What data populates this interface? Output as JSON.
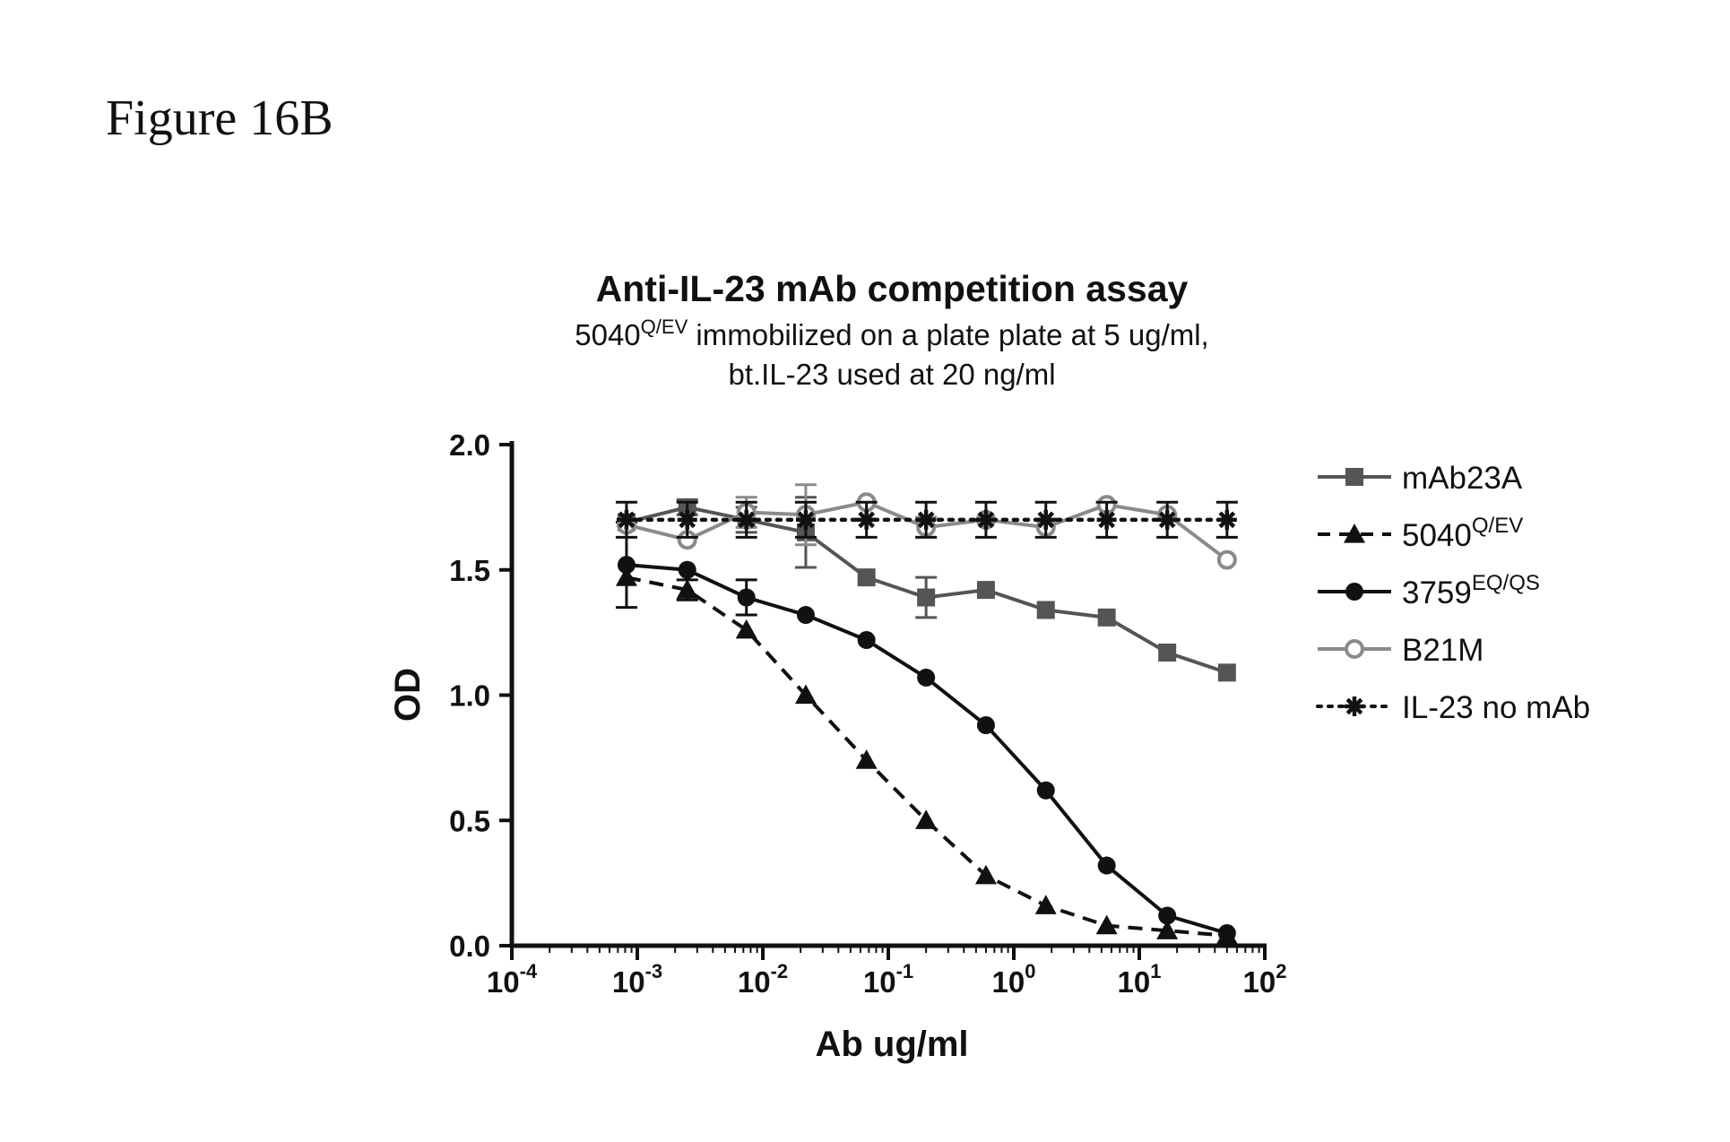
{
  "figure_label": "Figure 16B",
  "chart_data": {
    "type": "line",
    "title": "Anti-IL-23 mAb competition assay",
    "subtitle_lines": [
      {
        "pre": "5040",
        "sup": "Q/EV",
        "post": " immobilized on a plate plate at 5 ug/ml,"
      },
      {
        "pre": "bt.IL-23 used at 20 ng/ml",
        "sup": "",
        "post": ""
      }
    ],
    "xlabel": "Ab ug/ml",
    "ylabel": "OD",
    "x_scale": "log",
    "xlim": [
      0.0001,
      100
    ],
    "ylim": [
      0,
      2.0
    ],
    "x_ticks": [
      {
        "base": "10",
        "exp": "-4"
      },
      {
        "base": "10",
        "exp": "-3"
      },
      {
        "base": "10",
        "exp": "-2"
      },
      {
        "base": "10",
        "exp": "-1"
      },
      {
        "base": "10",
        "exp": "0"
      },
      {
        "base": "10",
        "exp": "1"
      },
      {
        "base": "10",
        "exp": "2"
      }
    ],
    "y_ticks": [
      "0.0",
      "0.5",
      "1.0",
      "1.5",
      "2.0"
    ],
    "grid": false,
    "legend_position": "right",
    "x": [
      0.00082,
      0.0025,
      0.0074,
      0.022,
      0.067,
      0.2,
      0.6,
      1.8,
      5.5,
      16.7,
      50
    ],
    "series": [
      {
        "name": "mAb23A",
        "sup": "",
        "marker": "square",
        "line": "solid",
        "color": "#555555",
        "values": [
          1.69,
          1.75,
          1.7,
          1.65,
          1.47,
          1.39,
          1.42,
          1.34,
          1.31,
          1.17,
          1.09
        ],
        "errors": [
          0,
          0.03,
          0.05,
          0.14,
          0,
          0.08,
          0,
          0,
          0,
          0,
          0
        ]
      },
      {
        "name": "5040",
        "sup": "Q/EV",
        "marker": "triangle",
        "line": "dashed",
        "color": "#111111",
        "values": [
          1.47,
          1.42,
          1.26,
          1.0,
          0.74,
          0.5,
          0.28,
          0.16,
          0.08,
          0.06,
          0.04
        ],
        "errors": [
          0,
          0.04,
          0,
          0,
          0,
          0,
          0,
          0,
          0,
          0,
          0
        ]
      },
      {
        "name": "3759",
        "sup": "EQ/QS",
        "marker": "circle",
        "line": "solid",
        "color": "#111111",
        "values": [
          1.52,
          1.5,
          1.39,
          1.32,
          1.22,
          1.07,
          0.88,
          0.62,
          0.32,
          0.12,
          0.05
        ],
        "errors": [
          0.17,
          0,
          0.07,
          0,
          0,
          0,
          0,
          0,
          0,
          0,
          0
        ]
      },
      {
        "name": "B21M",
        "sup": "",
        "marker": "open-circle",
        "line": "solid",
        "color": "#8a8a8a",
        "values": [
          1.68,
          1.62,
          1.73,
          1.72,
          1.77,
          1.67,
          1.7,
          1.67,
          1.76,
          1.72,
          1.54
        ],
        "errors": [
          0,
          0,
          0.06,
          0.12,
          0,
          0.04,
          0,
          0,
          0,
          0,
          0
        ]
      },
      {
        "name": "IL-23 no mAb",
        "sup": "",
        "marker": "star",
        "line": "dotted",
        "color": "#111111",
        "values": [
          1.7,
          1.7,
          1.7,
          1.7,
          1.7,
          1.7,
          1.7,
          1.7,
          1.7,
          1.7,
          1.7
        ],
        "errors": [
          0.07,
          0.07,
          0.07,
          0.07,
          0.07,
          0.07,
          0.07,
          0.07,
          0.07,
          0.07,
          0.07
        ]
      }
    ]
  }
}
